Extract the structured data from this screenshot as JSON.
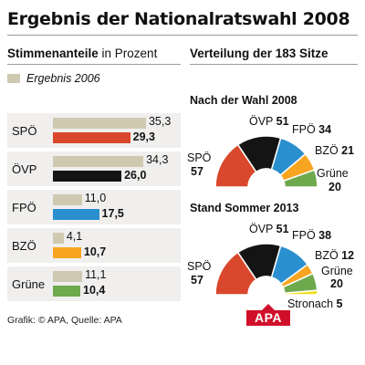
{
  "header": {
    "title": "Ergebnis der Nationalratswahl 2008",
    "left_subtitle_bold": "Stimmenanteile",
    "left_subtitle_rest": " in Prozent",
    "right_subtitle": "Verteilung der 183 Sitze",
    "legend_label": "Ergebnis 2006"
  },
  "footer": {
    "source": "Grafik: © APA, Quelle: APA",
    "logo_text": "APA"
  },
  "colors": {
    "SPÖ": "#d9482c",
    "ÖVP": "#141414",
    "FPÖ": "#2a8fce",
    "BZÖ": "#f7a521",
    "Grüne": "#6ea94e",
    "Stronach": "#f3dd1c",
    "previous": "#cfc9b1"
  },
  "chart_data": [
    {
      "type": "bar",
      "categories": [
        "SPÖ",
        "ÖVP",
        "FPÖ",
        "BZÖ",
        "Grüne"
      ],
      "series": [
        {
          "name": "Ergebnis 2006",
          "values": [
            35.3,
            34.3,
            11.0,
            4.1,
            11.1
          ],
          "labels": [
            "35,3",
            "34,3",
            "11,0",
            "4,1",
            "11,1"
          ]
        },
        {
          "values": [
            29.3,
            26.0,
            17.5,
            10.7,
            10.4
          ],
          "labels": [
            "29,3",
            "26,0",
            "17,5",
            "10,7",
            "10,4"
          ]
        }
      ],
      "xlim": [
        0,
        45
      ]
    },
    {
      "type": "pie",
      "title": "Nach der Wahl 2008",
      "shape": "semicircle",
      "labels": [
        "SPÖ",
        "ÖVP",
        "FPÖ",
        "BZÖ",
        "Grüne"
      ],
      "values": [
        57,
        51,
        34,
        21,
        20
      ],
      "total": 183
    },
    {
      "type": "pie",
      "title": "Stand Sommer 2013",
      "shape": "semicircle",
      "labels": [
        "SPÖ",
        "ÖVP",
        "FPÖ",
        "BZÖ",
        "Grüne",
        "Stronach"
      ],
      "values": [
        57,
        51,
        38,
        12,
        20,
        5
      ],
      "total": 183
    }
  ]
}
